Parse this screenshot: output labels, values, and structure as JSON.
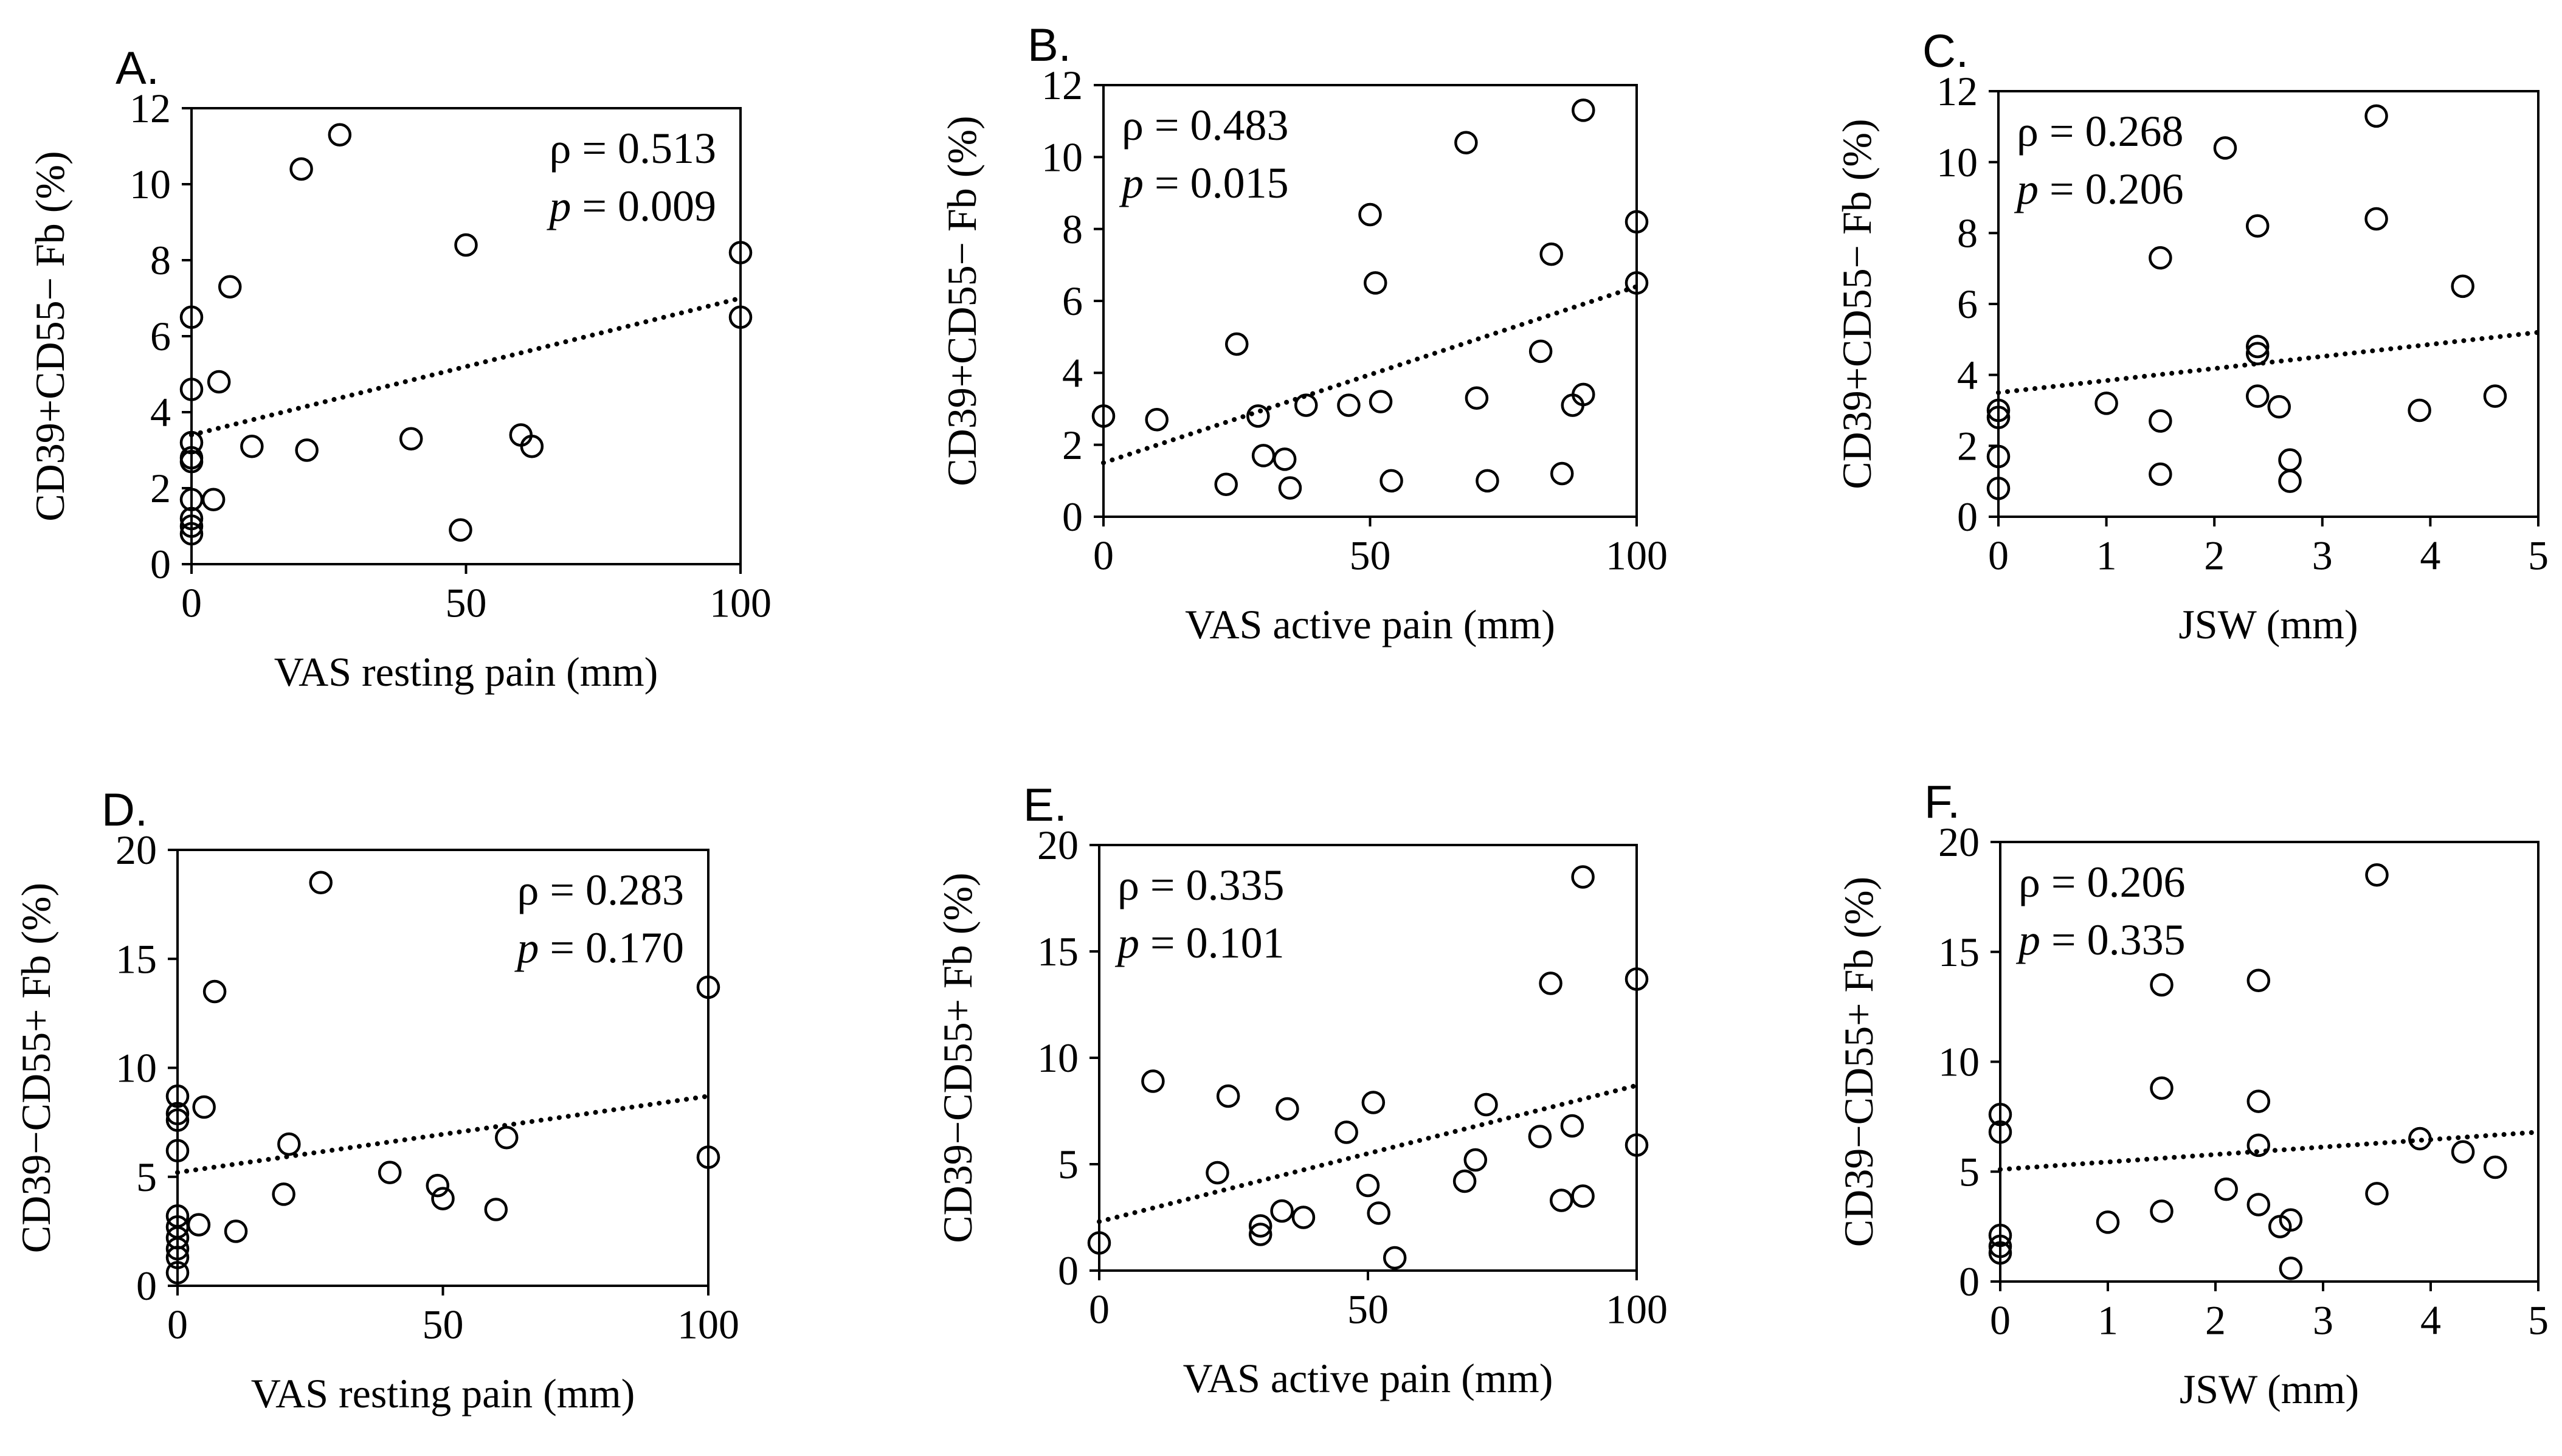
{
  "chart_data": [
    {
      "type": "scatter",
      "panel_label": "A.",
      "xlabel": "VAS resting pain (mm)",
      "ylabel": "CD39+CD55− Fb (%)",
      "xlim": [
        0,
        100
      ],
      "ylim": [
        0,
        12
      ],
      "xticks": [
        0,
        50,
        100
      ],
      "yticks": [
        0,
        2,
        4,
        6,
        8,
        10,
        12
      ],
      "grid": false,
      "legend": "none",
      "annotation": {
        "rho": "ρ = 0.513",
        "p_label": "p",
        "p_value": " = 0.009",
        "placement": "top-right"
      },
      "trendline": {
        "style": "dotted",
        "x": [
          0,
          100
        ],
        "y": [
          3.4,
          7.0
        ]
      },
      "points": [
        {
          "x": 0,
          "y": 0.8
        },
        {
          "x": 0,
          "y": 1.0
        },
        {
          "x": 0,
          "y": 1.2
        },
        {
          "x": 0,
          "y": 1.7
        },
        {
          "x": 0,
          "y": 2.7
        },
        {
          "x": 0,
          "y": 2.8
        },
        {
          "x": 0,
          "y": 3.2
        },
        {
          "x": 0,
          "y": 4.6
        },
        {
          "x": 0,
          "y": 6.5
        },
        {
          "x": 4,
          "y": 1.7
        },
        {
          "x": 5,
          "y": 4.8
        },
        {
          "x": 7,
          "y": 7.3
        },
        {
          "x": 11,
          "y": 3.1
        },
        {
          "x": 20,
          "y": 10.4
        },
        {
          "x": 21,
          "y": 3.0
        },
        {
          "x": 27,
          "y": 11.3
        },
        {
          "x": 40,
          "y": 3.3
        },
        {
          "x": 49,
          "y": 0.9
        },
        {
          "x": 50,
          "y": 8.4
        },
        {
          "x": 60,
          "y": 3.4
        },
        {
          "x": 62,
          "y": 3.1
        },
        {
          "x": 100,
          "y": 6.5
        },
        {
          "x": 100,
          "y": 8.2
        }
      ]
    },
    {
      "type": "scatter",
      "panel_label": "B.",
      "xlabel": "VAS active pain (mm)",
      "ylabel": "CD39+CD55− Fb (%)",
      "xlim": [
        0,
        100
      ],
      "ylim": [
        0,
        12
      ],
      "xticks": [
        0,
        50,
        100
      ],
      "yticks": [
        0,
        2,
        4,
        6,
        8,
        10,
        12
      ],
      "grid": false,
      "legend": "none",
      "annotation": {
        "rho": "ρ = 0.483",
        "p_label": "p",
        "p_value": " = 0.015",
        "placement": "top-left"
      },
      "trendline": {
        "style": "dotted",
        "x": [
          0,
          100
        ],
        "y": [
          1.5,
          6.4
        ]
      },
      "points": [
        {
          "x": 0,
          "y": 2.8
        },
        {
          "x": 10,
          "y": 2.7
        },
        {
          "x": 23,
          "y": 0.9
        },
        {
          "x": 25,
          "y": 4.8
        },
        {
          "x": 29,
          "y": 2.8
        },
        {
          "x": 30,
          "y": 1.7
        },
        {
          "x": 34,
          "y": 1.6
        },
        {
          "x": 35,
          "y": 0.8
        },
        {
          "x": 38,
          "y": 3.1
        },
        {
          "x": 46,
          "y": 3.1
        },
        {
          "x": 50,
          "y": 8.4
        },
        {
          "x": 51,
          "y": 6.5
        },
        {
          "x": 52,
          "y": 3.2
        },
        {
          "x": 54,
          "y": 1.0
        },
        {
          "x": 68,
          "y": 10.4
        },
        {
          "x": 70,
          "y": 3.3
        },
        {
          "x": 72,
          "y": 1.0
        },
        {
          "x": 82,
          "y": 4.6
        },
        {
          "x": 84,
          "y": 7.3
        },
        {
          "x": 86,
          "y": 1.2
        },
        {
          "x": 88,
          "y": 3.1
        },
        {
          "x": 90,
          "y": 3.4
        },
        {
          "x": 90,
          "y": 11.3
        },
        {
          "x": 100,
          "y": 6.5
        },
        {
          "x": 100,
          "y": 8.2
        }
      ]
    },
    {
      "type": "scatter",
      "panel_label": "C.",
      "xlabel": "JSW (mm)",
      "ylabel": "CD39+CD55− Fb (%)",
      "xlim": [
        0,
        5
      ],
      "ylim": [
        0,
        12
      ],
      "xticks": [
        0,
        1,
        2,
        3,
        4,
        5
      ],
      "yticks": [
        0,
        2,
        4,
        6,
        8,
        10,
        12
      ],
      "grid": false,
      "legend": "none",
      "annotation": {
        "rho": "ρ = 0.268",
        "p_label": "p",
        "p_value": " = 0.206",
        "placement": "top-left"
      },
      "trendline": {
        "style": "dotted",
        "x": [
          0,
          5
        ],
        "y": [
          3.5,
          5.2
        ]
      },
      "points": [
        {
          "x": 0,
          "y": 0.8
        },
        {
          "x": 0,
          "y": 1.7
        },
        {
          "x": 0,
          "y": 2.8
        },
        {
          "x": 0,
          "y": 3.0
        },
        {
          "x": 1.0,
          "y": 3.2
        },
        {
          "x": 1.5,
          "y": 1.2
        },
        {
          "x": 1.5,
          "y": 2.7
        },
        {
          "x": 1.5,
          "y": 7.3
        },
        {
          "x": 2.1,
          "y": 10.4
        },
        {
          "x": 2.4,
          "y": 3.4
        },
        {
          "x": 2.4,
          "y": 4.6
        },
        {
          "x": 2.4,
          "y": 4.8
        },
        {
          "x": 2.4,
          "y": 8.2
        },
        {
          "x": 2.6,
          "y": 3.1
        },
        {
          "x": 2.7,
          "y": 1.0
        },
        {
          "x": 2.7,
          "y": 1.6
        },
        {
          "x": 3.5,
          "y": 8.4
        },
        {
          "x": 3.5,
          "y": 11.3
        },
        {
          "x": 3.9,
          "y": 3.0
        },
        {
          "x": 4.3,
          "y": 6.5
        },
        {
          "x": 4.6,
          "y": 3.4
        }
      ]
    },
    {
      "type": "scatter",
      "panel_label": "D.",
      "xlabel": "VAS resting pain (mm)",
      "ylabel": "CD39−CD55+ Fb (%)",
      "xlim": [
        0,
        100
      ],
      "ylim": [
        0,
        20
      ],
      "xticks": [
        0,
        50,
        100
      ],
      "yticks": [
        0,
        5,
        10,
        15,
        20
      ],
      "grid": false,
      "legend": "none",
      "annotation": {
        "rho": "ρ = 0.283",
        "p_label": "p",
        "p_value": " = 0.170",
        "placement": "top-right"
      },
      "trendline": {
        "style": "dotted",
        "x": [
          0,
          100
        ],
        "y": [
          5.2,
          8.7
        ]
      },
      "points": [
        {
          "x": 0,
          "y": 0.6
        },
        {
          "x": 0,
          "y": 1.3
        },
        {
          "x": 0,
          "y": 1.7
        },
        {
          "x": 0,
          "y": 2.2
        },
        {
          "x": 0,
          "y": 2.7
        },
        {
          "x": 0,
          "y": 3.2
        },
        {
          "x": 0,
          "y": 6.2
        },
        {
          "x": 0,
          "y": 7.6
        },
        {
          "x": 0,
          "y": 7.9
        },
        {
          "x": 0,
          "y": 8.7
        },
        {
          "x": 4,
          "y": 2.8
        },
        {
          "x": 5,
          "y": 8.2
        },
        {
          "x": 7,
          "y": 13.5
        },
        {
          "x": 11,
          "y": 2.5
        },
        {
          "x": 20,
          "y": 4.2
        },
        {
          "x": 21,
          "y": 6.5
        },
        {
          "x": 27,
          "y": 18.5
        },
        {
          "x": 40,
          "y": 5.2
        },
        {
          "x": 49,
          "y": 4.6
        },
        {
          "x": 50,
          "y": 4.0
        },
        {
          "x": 60,
          "y": 3.5
        },
        {
          "x": 62,
          "y": 6.8
        },
        {
          "x": 100,
          "y": 5.9
        },
        {
          "x": 100,
          "y": 13.7
        }
      ]
    },
    {
      "type": "scatter",
      "panel_label": "E.",
      "xlabel": "VAS active pain (mm)",
      "ylabel": "CD39−CD55+ Fb (%)",
      "xlim": [
        0,
        100
      ],
      "ylim": [
        0,
        20
      ],
      "xticks": [
        0,
        50,
        100
      ],
      "yticks": [
        0,
        5,
        10,
        15,
        20
      ],
      "grid": false,
      "legend": "none",
      "annotation": {
        "rho": "ρ = 0.335",
        "p_label": "p",
        "p_value": " = 0.101",
        "placement": "top-left"
      },
      "trendline": {
        "style": "dotted",
        "x": [
          0,
          100
        ],
        "y": [
          2.3,
          8.7
        ]
      },
      "points": [
        {
          "x": 0,
          "y": 1.3
        },
        {
          "x": 10,
          "y": 8.9
        },
        {
          "x": 22,
          "y": 4.6
        },
        {
          "x": 24,
          "y": 8.2
        },
        {
          "x": 30,
          "y": 1.7
        },
        {
          "x": 30,
          "y": 2.1
        },
        {
          "x": 34,
          "y": 2.8
        },
        {
          "x": 35,
          "y": 7.6
        },
        {
          "x": 38,
          "y": 2.5
        },
        {
          "x": 46,
          "y": 6.5
        },
        {
          "x": 50,
          "y": 4.0
        },
        {
          "x": 51,
          "y": 7.9
        },
        {
          "x": 52,
          "y": 2.7
        },
        {
          "x": 55,
          "y": 0.6
        },
        {
          "x": 68,
          "y": 4.2
        },
        {
          "x": 70,
          "y": 5.2
        },
        {
          "x": 72,
          "y": 7.8
        },
        {
          "x": 82,
          "y": 6.3
        },
        {
          "x": 84,
          "y": 13.5
        },
        {
          "x": 86,
          "y": 3.3
        },
        {
          "x": 88,
          "y": 6.8
        },
        {
          "x": 90,
          "y": 3.5
        },
        {
          "x": 90,
          "y": 18.5
        },
        {
          "x": 100,
          "y": 5.9
        },
        {
          "x": 100,
          "y": 13.7
        }
      ]
    },
    {
      "type": "scatter",
      "panel_label": "F.",
      "xlabel": "JSW (mm)",
      "ylabel": "CD39−CD55+ Fb (%)",
      "xlim": [
        0,
        5
      ],
      "ylim": [
        0,
        20
      ],
      "xticks": [
        0,
        1,
        2,
        3,
        4,
        5
      ],
      "yticks": [
        0,
        5,
        10,
        15,
        20
      ],
      "grid": false,
      "legend": "none",
      "annotation": {
        "rho": "ρ = 0.206",
        "p_label": "p",
        "p_value": " = 0.335",
        "placement": "top-left"
      },
      "trendline": {
        "style": "dotted",
        "x": [
          0,
          5
        ],
        "y": [
          5.1,
          6.8
        ]
      },
      "points": [
        {
          "x": 0,
          "y": 1.3
        },
        {
          "x": 0,
          "y": 1.6
        },
        {
          "x": 0,
          "y": 2.1
        },
        {
          "x": 0,
          "y": 6.8
        },
        {
          "x": 0,
          "y": 7.6
        },
        {
          "x": 1.0,
          "y": 2.7
        },
        {
          "x": 1.5,
          "y": 3.2
        },
        {
          "x": 1.5,
          "y": 8.8
        },
        {
          "x": 1.5,
          "y": 13.5
        },
        {
          "x": 2.1,
          "y": 4.2
        },
        {
          "x": 2.4,
          "y": 3.5
        },
        {
          "x": 2.4,
          "y": 6.2
        },
        {
          "x": 2.4,
          "y": 8.2
        },
        {
          "x": 2.4,
          "y": 13.7
        },
        {
          "x": 2.6,
          "y": 2.5
        },
        {
          "x": 2.7,
          "y": 0.6
        },
        {
          "x": 2.7,
          "y": 2.8
        },
        {
          "x": 3.5,
          "y": 4.0
        },
        {
          "x": 3.5,
          "y": 18.5
        },
        {
          "x": 3.9,
          "y": 6.5
        },
        {
          "x": 4.3,
          "y": 5.9
        },
        {
          "x": 4.6,
          "y": 5.2
        }
      ]
    }
  ]
}
